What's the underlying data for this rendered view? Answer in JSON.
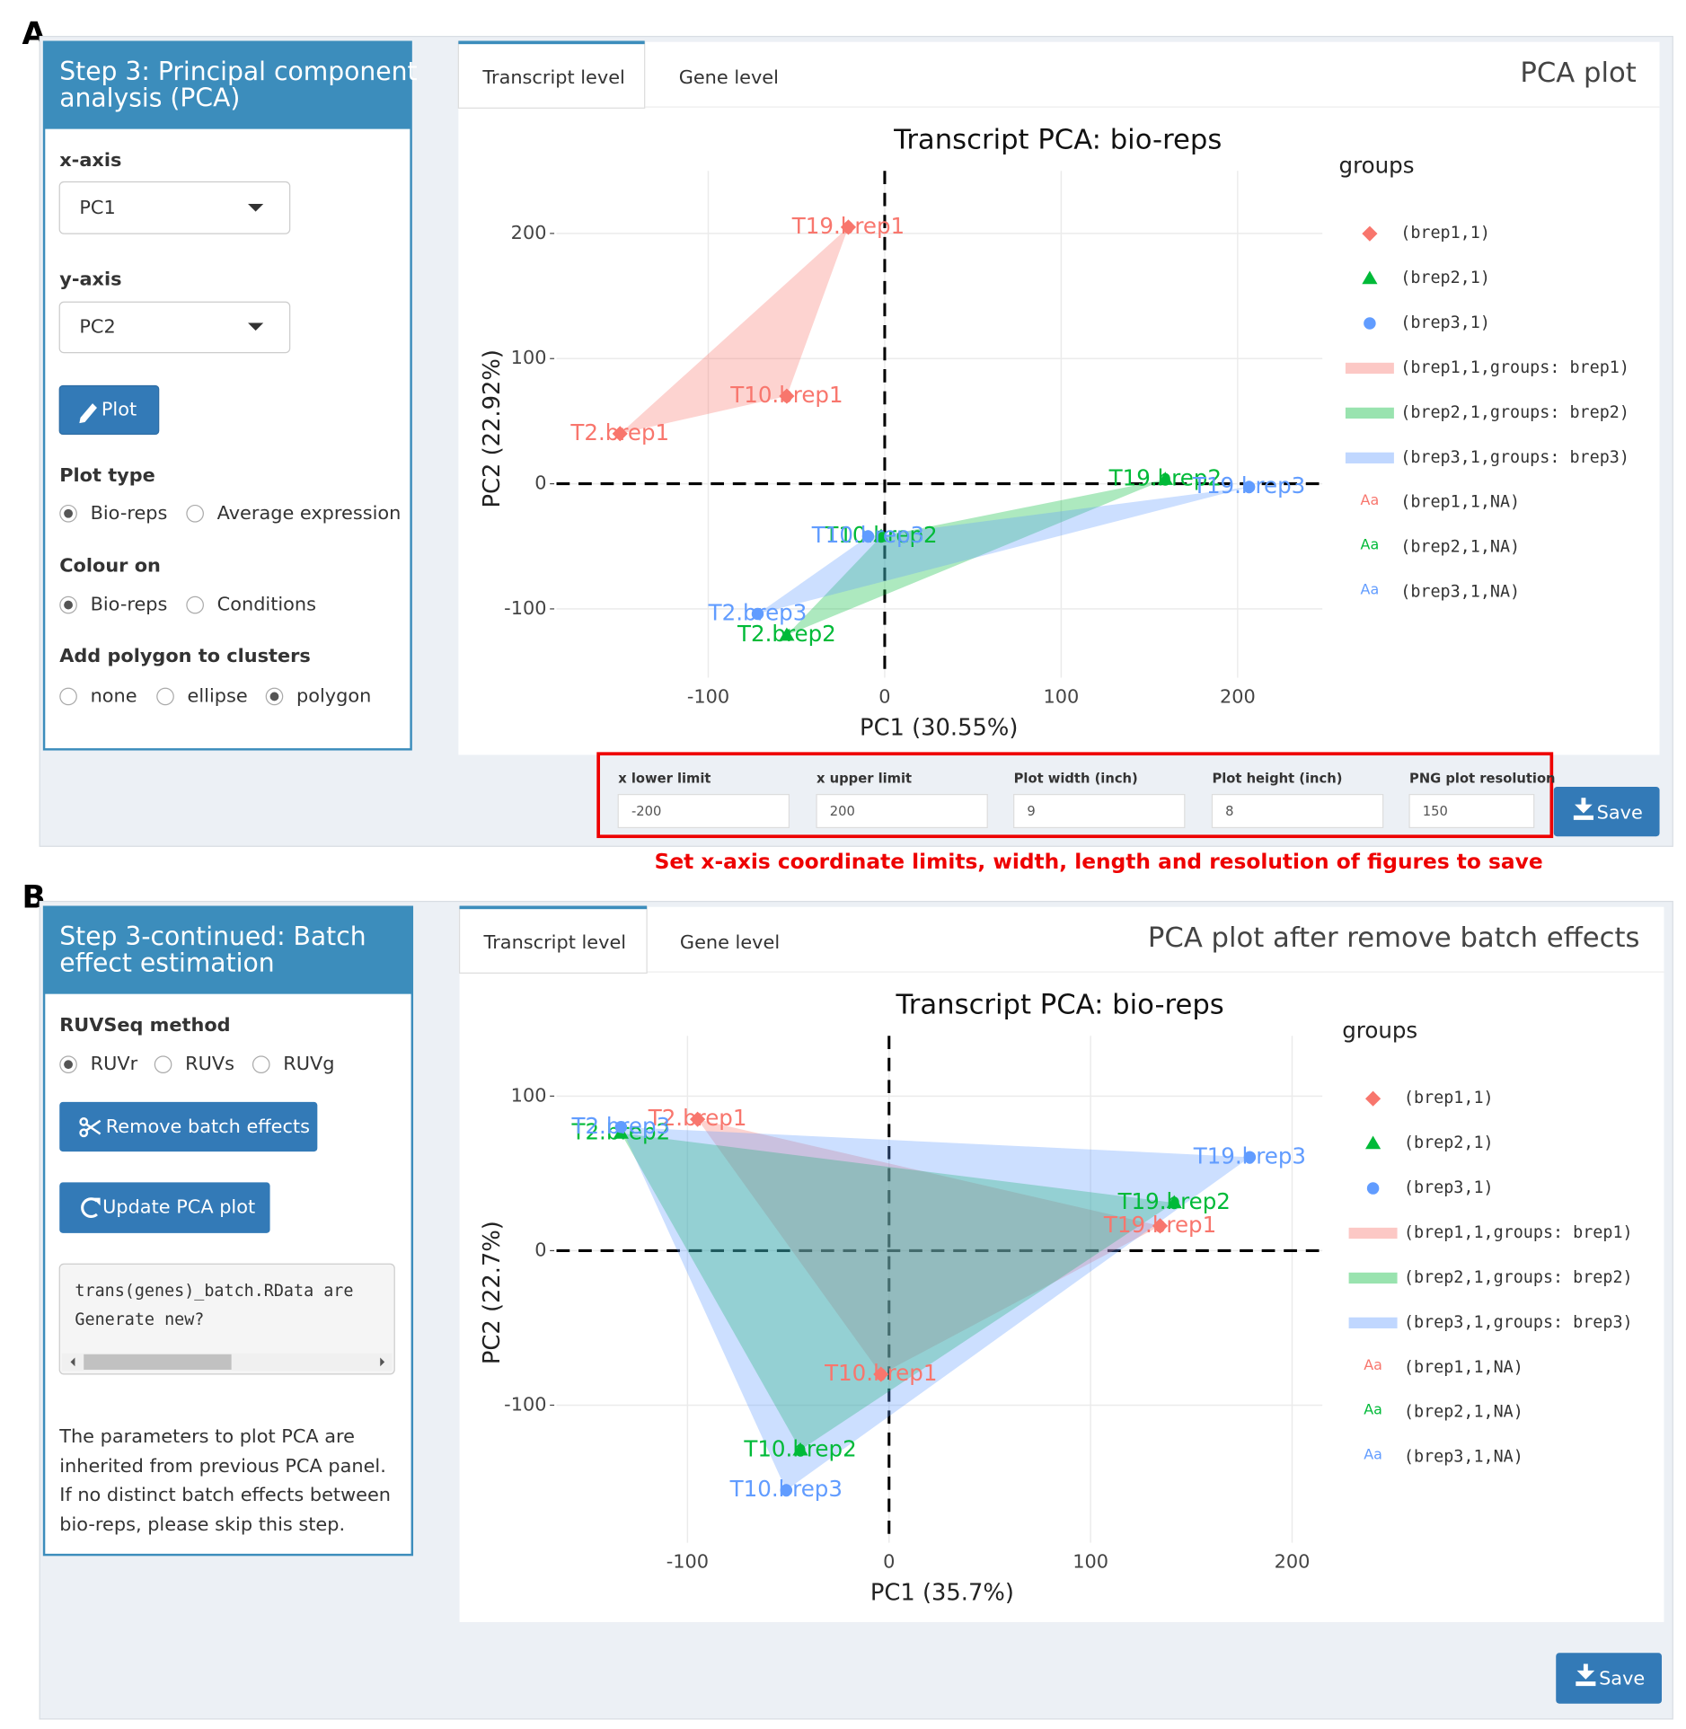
{
  "panels": [
    {
      "label": "A",
      "sidebar": {
        "title_lines": [
          "Step 3: Principal component",
          "analysis (PCA)"
        ],
        "x_axis": {
          "label": "x-axis",
          "value": "PC1"
        },
        "y_axis": {
          "label": "y-axis",
          "value": "PC2"
        },
        "button": "Plot",
        "plot_type": {
          "label": "Plot type",
          "options": [
            "Bio-reps",
            "Average expression"
          ],
          "selected": 0
        },
        "colour_on": {
          "label": "Colour on",
          "options": [
            "Bio-reps",
            "Conditions"
          ],
          "selected": 0
        },
        "polygon": {
          "label": "Add polygon to clusters",
          "options": [
            "none",
            "ellipse",
            "polygon"
          ],
          "selected": 2
        }
      },
      "tabs": [
        "Transcript level",
        "Gene level"
      ],
      "box_title": "PCA plot",
      "limits": [
        {
          "label": "x lower limit",
          "value": -200
        },
        {
          "label": "x upper limit",
          "value": 200
        },
        {
          "label": "Plot width (inch)",
          "value": 9
        },
        {
          "label": "Plot height (inch)",
          "value": 8
        },
        {
          "label": "PNG plot resolution",
          "value": 150
        }
      ],
      "save": "Save",
      "note": "Set x-axis coordinate limits, width, length and resolution of figures to save"
    },
    {
      "label": "B",
      "sidebar": {
        "title_lines": [
          "Step 3-continued: Batch",
          "effect estimation"
        ],
        "method": {
          "label": "RUVSeq method",
          "options": [
            "RUVr",
            "RUVs",
            "RUVg"
          ],
          "selected": 0
        },
        "buttons": [
          "Remove batch effects",
          "Update PCA plot"
        ],
        "console_lines": [
          "trans(genes)_batch.RData are",
          "Generate new?"
        ],
        "help_lines": [
          "The parameters to plot PCA are",
          "inherited from previous PCA panel.",
          "If no distinct batch effects between",
          "bio-reps, please skip this step."
        ]
      },
      "tabs": [
        "Transcript level",
        "Gene level"
      ],
      "box_title": "PCA plot after remove batch effects",
      "save": "Save"
    }
  ],
  "chart_data": [
    {
      "type": "scatter",
      "title": "Transcript PCA: bio-reps",
      "xlabel": "PC1 (30.55%)",
      "ylabel": "PC2 (22.92%)",
      "xlim": [
        -186,
        248
      ],
      "ylim": [
        -155,
        250
      ],
      "xticks": [
        -100,
        0,
        100,
        200
      ],
      "yticks": [
        -100,
        0,
        100,
        200
      ],
      "grid": true,
      "zero_lines": true,
      "legend_title": "groups",
      "legend_text_key": "Aa",
      "series": [
        {
          "name": "(brep1,1)",
          "polygon_name": "(brep1,1,groups: brep1)",
          "text_name": "(brep1,1,NA)",
          "color": "#F8766D",
          "marker": "diamond",
          "labels": [
            "T19.brep1",
            "T10.brep1",
            "T2.brep1"
          ],
          "x": [
            -20.6,
            -55.5,
            -150
          ],
          "values": [
            205,
            70,
            40
          ]
        },
        {
          "name": "(brep2,1)",
          "polygon_name": "(brep2,1,groups: brep2)",
          "text_name": "(brep2,1,NA)",
          "color": "#00BA38",
          "marker": "triangle",
          "labels": [
            "T19.brep2",
            "T10.brep2",
            "T2.brep2"
          ],
          "x": [
            159,
            -2,
            -55.5
          ],
          "values": [
            3.5,
            -42,
            -121
          ]
        },
        {
          "name": "(brep3,1)",
          "polygon_name": "(brep3,1,groups: brep3)",
          "text_name": "(brep3,1,NA)",
          "color": "#619CFF",
          "marker": "circle",
          "labels": [
            "T19.brep3",
            "T10.brep3",
            "T2.brep3"
          ],
          "x": [
            206.5,
            -9.4,
            -72
          ],
          "values": [
            -2.6,
            -42,
            -104
          ]
        }
      ]
    },
    {
      "type": "scatter",
      "title": "Transcript PCA: bio-reps",
      "xlabel": "PC1 (35.7%)",
      "ylabel": "PC2 (22.7%)",
      "xlim": [
        -165,
        215
      ],
      "ylim": [
        -189,
        139
      ],
      "xticks": [
        -100,
        0,
        100,
        200
      ],
      "yticks": [
        -100,
        0,
        100
      ],
      "grid": true,
      "zero_lines": true,
      "legend_title": "groups",
      "legend_text_key": "Aa",
      "series": [
        {
          "name": "(brep1,1)",
          "polygon_name": "(brep1,1,groups: brep1)",
          "text_name": "(brep1,1,NA)",
          "color": "#F8766D",
          "marker": "diamond",
          "labels": [
            "T2.brep1",
            "T19.brep1",
            "T10.brep1"
          ],
          "x": [
            -95,
            134.5,
            -4
          ],
          "values": [
            85,
            16,
            -80
          ]
        },
        {
          "name": "(brep2,1)",
          "polygon_name": "(brep2,1,groups: brep2)",
          "text_name": "(brep2,1,NA)",
          "color": "#00BA38",
          "marker": "triangle",
          "labels": [
            "T2.brep2",
            "T19.brep2",
            "T10.brep2"
          ],
          "x": [
            -133,
            141.5,
            -44
          ],
          "values": [
            76,
            31,
            -129
          ]
        },
        {
          "name": "(brep3,1)",
          "polygon_name": "(brep3,1,groups: brep3)",
          "text_name": "(brep3,1,NA)",
          "color": "#619CFF",
          "marker": "circle",
          "labels": [
            "T2.brep3",
            "T19.brep3",
            "T10.brep3"
          ],
          "x": [
            -133,
            179,
            -51
          ],
          "values": [
            80,
            60.5,
            -155
          ]
        }
      ]
    }
  ]
}
